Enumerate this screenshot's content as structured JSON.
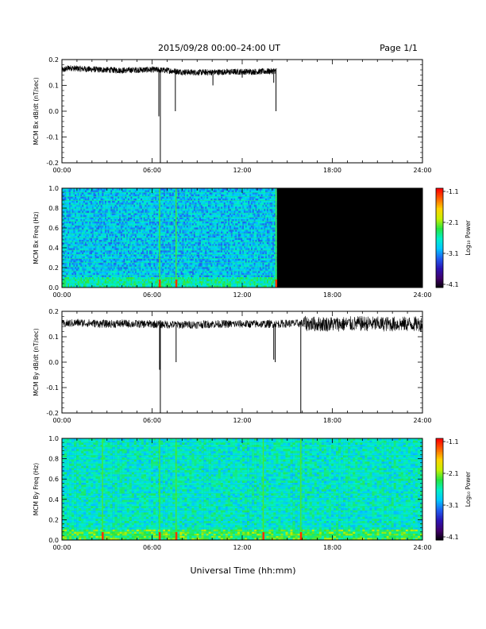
{
  "header": {
    "title": "2015/09/28  00:00–24:00 UT",
    "page_label": "Page 1/1"
  },
  "colors": {
    "background": "#ffffff",
    "trace": "#000000",
    "spectrogram_void": "#000000",
    "colormap": [
      "#000000",
      "#40006a",
      "#2b14b4",
      "#1f5cf0",
      "#00c8ff",
      "#00f0c8",
      "#26e640",
      "#c8f000",
      "#ffd200",
      "#ff6400",
      "#ff0000"
    ]
  },
  "chart_data": [
    {
      "id": "bx-dbdt",
      "type": "line",
      "ylabel": "MCM Bx dB/dt (nT/sec)",
      "x_ticks": [
        "00:00",
        "06:00",
        "12:00",
        "18:00",
        "24:00"
      ],
      "y_ticks": [
        "0.2",
        "0.1",
        "0.0",
        "-0.1",
        "-0.2"
      ],
      "xlim": [
        0,
        24
      ],
      "ylim": [
        -0.2,
        0.2
      ],
      "data_end_hour": 14.3,
      "baseline": [
        {
          "x": 0.0,
          "y": 0.158
        },
        {
          "x": 0.5,
          "y": 0.168
        },
        {
          "x": 1.0,
          "y": 0.165
        },
        {
          "x": 2.0,
          "y": 0.162
        },
        {
          "x": 3.0,
          "y": 0.16
        },
        {
          "x": 4.0,
          "y": 0.158
        },
        {
          "x": 5.0,
          "y": 0.16
        },
        {
          "x": 6.0,
          "y": 0.161
        },
        {
          "x": 7.0,
          "y": 0.158
        },
        {
          "x": 8.0,
          "y": 0.152
        },
        {
          "x": 9.0,
          "y": 0.15
        },
        {
          "x": 10.0,
          "y": 0.151
        },
        {
          "x": 11.0,
          "y": 0.152
        },
        {
          "x": 12.0,
          "y": 0.153
        },
        {
          "x": 13.0,
          "y": 0.153
        },
        {
          "x": 14.0,
          "y": 0.155
        },
        {
          "x": 14.3,
          "y": 0.157
        }
      ],
      "noise_amplitude": 0.012,
      "spikes": [
        {
          "x": 6.55,
          "y": -0.2
        },
        {
          "x": 6.45,
          "y": -0.02
        },
        {
          "x": 7.55,
          "y": 0.0
        },
        {
          "x": 10.05,
          "y": 0.1
        },
        {
          "x": 12.0,
          "y": 0.13
        },
        {
          "x": 14.1,
          "y": 0.11
        },
        {
          "x": 14.25,
          "y": 0.0
        }
      ]
    },
    {
      "id": "bx-spectrogram",
      "type": "heatmap",
      "ylabel": "MCM Bx Freq (Hz)",
      "x_ticks": [
        "00:00",
        "06:00",
        "12:00",
        "18:00",
        "24:00"
      ],
      "y_ticks": [
        "1.0",
        "0.8",
        "0.6",
        "0.4",
        "0.2",
        "0.0"
      ],
      "xlim": [
        0,
        24
      ],
      "ylim": [
        0,
        1.0
      ],
      "data_end_hour": 14.3,
      "colorbar": {
        "label": "Log₁₀ Power",
        "ticks": [
          "-1.1",
          "-2.1",
          "-3.1",
          "-4.1"
        ],
        "range": [
          -4.1,
          -1.1
        ]
      },
      "harmonic_lines_hz": [
        0.042,
        0.083,
        0.125,
        0.167,
        0.208,
        0.25,
        0.292,
        0.333,
        0.375,
        0.417,
        0.458,
        0.5,
        0.542,
        0.583,
        0.625,
        0.667,
        0.708,
        0.75,
        0.792,
        0.833,
        0.875,
        0.917,
        0.958,
        1.0
      ],
      "broadband_events_hours": [
        6.5,
        7.6,
        14.25
      ]
    },
    {
      "id": "by-dbdt",
      "type": "line",
      "ylabel": "MCM By dB/dt (nT/sec)",
      "x_ticks": [
        "00:00",
        "06:00",
        "12:00",
        "18:00",
        "24:00"
      ],
      "y_ticks": [
        "0.2",
        "0.1",
        "0.0",
        "-0.1",
        "-0.2"
      ],
      "xlim": [
        0,
        24
      ],
      "ylim": [
        -0.2,
        0.2
      ],
      "data_end_hour": 24,
      "baseline": [
        {
          "x": 0.0,
          "y": 0.15
        },
        {
          "x": 1.0,
          "y": 0.155
        },
        {
          "x": 2.0,
          "y": 0.153
        },
        {
          "x": 3.0,
          "y": 0.15
        },
        {
          "x": 4.0,
          "y": 0.152
        },
        {
          "x": 5.0,
          "y": 0.15
        },
        {
          "x": 6.0,
          "y": 0.15
        },
        {
          "x": 7.0,
          "y": 0.148
        },
        {
          "x": 8.0,
          "y": 0.147
        },
        {
          "x": 9.0,
          "y": 0.148
        },
        {
          "x": 10.0,
          "y": 0.15
        },
        {
          "x": 11.0,
          "y": 0.15
        },
        {
          "x": 12.0,
          "y": 0.15
        },
        {
          "x": 13.0,
          "y": 0.15
        },
        {
          "x": 14.0,
          "y": 0.15
        },
        {
          "x": 15.0,
          "y": 0.152
        },
        {
          "x": 16.0,
          "y": 0.152
        },
        {
          "x": 17.0,
          "y": 0.15
        },
        {
          "x": 18.0,
          "y": 0.15
        },
        {
          "x": 19.0,
          "y": 0.15
        },
        {
          "x": 20.0,
          "y": 0.152
        },
        {
          "x": 21.0,
          "y": 0.15
        },
        {
          "x": 22.0,
          "y": 0.15
        },
        {
          "x": 23.0,
          "y": 0.15
        },
        {
          "x": 24.0,
          "y": 0.15
        }
      ],
      "noise_amplitude": 0.016,
      "noise_amplitude_late": 0.03,
      "spikes": [
        {
          "x": 6.5,
          "y": -0.03
        },
        {
          "x": 6.55,
          "y": -0.2
        },
        {
          "x": 7.6,
          "y": 0.0
        },
        {
          "x": 14.1,
          "y": 0.01
        },
        {
          "x": 14.2,
          "y": 0.0
        },
        {
          "x": 15.9,
          "y": -0.2
        }
      ]
    },
    {
      "id": "by-spectrogram",
      "type": "heatmap",
      "ylabel": "MCM By Freq (Hz)",
      "x_ticks": [
        "00:00",
        "06:00",
        "12:00",
        "18:00",
        "24:00"
      ],
      "y_ticks": [
        "1.0",
        "0.8",
        "0.6",
        "0.4",
        "0.2",
        "0.0"
      ],
      "xlim": [
        0,
        24
      ],
      "ylim": [
        0,
        1.0
      ],
      "data_end_hour": 24,
      "colorbar": {
        "label": "Log₁₀ Power",
        "ticks": [
          "-1.1",
          "-2.1",
          "-3.1",
          "-4.1"
        ],
        "range": [
          -4.1,
          -1.1
        ]
      },
      "harmonic_lines_hz": [
        0.042,
        0.083,
        0.125,
        0.167,
        0.208,
        0.25,
        0.292,
        0.333,
        0.375,
        0.417,
        0.458,
        0.5,
        0.542,
        0.583,
        0.625,
        0.667,
        0.708,
        0.75,
        0.792,
        0.833,
        0.875,
        0.917,
        0.958,
        1.0
      ],
      "broadband_events_hours": [
        2.7,
        6.5,
        7.6,
        13.4,
        15.9
      ]
    }
  ],
  "x_axis_title": "Universal Time (hh:mm)"
}
